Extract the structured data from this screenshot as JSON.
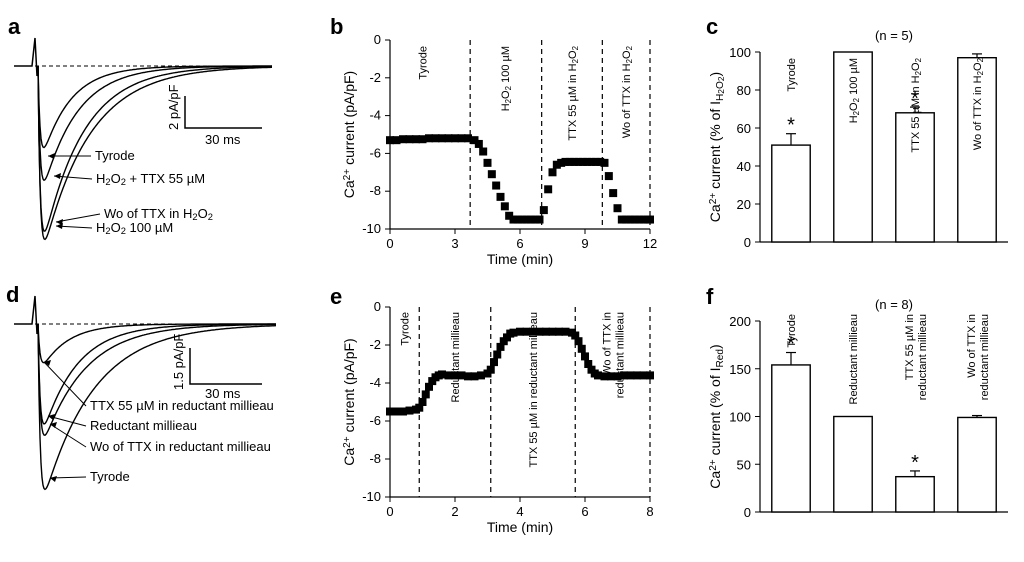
{
  "chart_data": [
    {
      "panel": "a",
      "type": "line",
      "traces": [
        {
          "name": "Tyrode",
          "peak": -1.0
        },
        {
          "name": "H2O2 + TTX 55 µM",
          "peak": -1.35
        },
        {
          "name": "Wo of TTX in H2O2",
          "peak": -1.9
        },
        {
          "name": "H2O2 100 µM",
          "peak": -1.95
        }
      ],
      "labels": [
        {
          "key": "Tyrode",
          "parts": [
            [
              "Tyrode",
              ""
            ]
          ]
        },
        {
          "key": "H2O2 + TTX 55 µM",
          "parts": [
            [
              "H",
              ""
            ],
            [
              "2",
              "sub"
            ],
            [
              "O",
              ""
            ],
            [
              "2",
              "sub"
            ],
            [
              " + TTX 55 µM",
              ""
            ]
          ]
        },
        {
          "key": "Wo of TTX in H2O2",
          "parts": [
            [
              "Wo of TTX in H",
              ""
            ],
            [
              "2",
              "sub"
            ],
            [
              "O",
              ""
            ],
            [
              "2",
              "sub"
            ]
          ]
        },
        {
          "key": "H2O2 100 µM",
          "parts": [
            [
              "H",
              ""
            ],
            [
              "2",
              "sub"
            ],
            [
              "O",
              ""
            ],
            [
              "2",
              "sub"
            ],
            [
              " 100 µM",
              ""
            ]
          ]
        }
      ],
      "scale_bar": {
        "y_label": "2 pA/pF",
        "x_label": "30 ms"
      }
    },
    {
      "panel": "b",
      "type": "scatter",
      "xlabel": "Time (min)",
      "ylabel_parts": [
        [
          "Ca",
          ""
        ],
        [
          "2+",
          "sup"
        ],
        [
          " current (pA/pF)",
          ""
        ]
      ],
      "xlim": [
        0,
        12
      ],
      "ylim": [
        -10,
        0
      ],
      "xticks": [
        "0",
        "3",
        "6",
        "9",
        "12"
      ],
      "yticks": [
        "0",
        "-2",
        "-4",
        "-6",
        "-8",
        "-10"
      ],
      "phase_boundaries": [
        3.7,
        7.0,
        9.8,
        12.0
      ],
      "phase_labels": [
        {
          "x": 1.5,
          "parts": [
            [
              "Tyrode",
              ""
            ]
          ]
        },
        {
          "x": 5.3,
          "parts": [
            [
              "H",
              ""
            ],
            [
              "2",
              "sub"
            ],
            [
              "O",
              ""
            ],
            [
              "2",
              "sub"
            ],
            [
              " 100 µM",
              ""
            ]
          ]
        },
        {
          "x": 8.4,
          "parts": [
            [
              "TTX 55 µM in H",
              ""
            ],
            [
              "2",
              "sub"
            ],
            [
              "O",
              ""
            ],
            [
              "2",
              "sub"
            ]
          ]
        },
        {
          "x": 10.9,
          "parts": [
            [
              "Wo of TTX in H",
              ""
            ],
            [
              "2",
              "sub"
            ],
            [
              "O",
              ""
            ],
            [
              "2",
              "sub"
            ]
          ]
        }
      ],
      "x": [
        0.0,
        0.3,
        0.6,
        0.9,
        1.2,
        1.5,
        1.8,
        2.1,
        2.4,
        2.7,
        3.0,
        3.3,
        3.6,
        3.9,
        4.1,
        4.3,
        4.5,
        4.7,
        4.9,
        5.1,
        5.3,
        5.5,
        5.7,
        5.9,
        6.1,
        6.3,
        6.5,
        6.7,
        6.9,
        7.1,
        7.3,
        7.5,
        7.7,
        7.9,
        8.1,
        8.3,
        8.5,
        8.7,
        8.9,
        9.1,
        9.3,
        9.5,
        9.7,
        9.9,
        10.1,
        10.3,
        10.5,
        10.7,
        10.9,
        11.1,
        11.3,
        11.5,
        11.7,
        11.9,
        12.0
      ],
      "y": [
        -5.3,
        -5.3,
        -5.25,
        -5.25,
        -5.25,
        -5.25,
        -5.2,
        -5.2,
        -5.2,
        -5.2,
        -5.2,
        -5.2,
        -5.2,
        -5.3,
        -5.5,
        -5.9,
        -6.5,
        -7.1,
        -7.7,
        -8.3,
        -8.8,
        -9.3,
        -9.5,
        -9.5,
        -9.5,
        -9.5,
        -9.5,
        -9.5,
        -9.5,
        -9.0,
        -7.9,
        -7.0,
        -6.6,
        -6.5,
        -6.45,
        -6.45,
        -6.45,
        -6.45,
        -6.45,
        -6.45,
        -6.45,
        -6.45,
        -6.45,
        -6.5,
        -7.2,
        -8.1,
        -8.9,
        -9.5,
        -9.5,
        -9.5,
        -9.5,
        -9.5,
        -9.5,
        -9.5,
        -9.5
      ]
    },
    {
      "panel": "c",
      "type": "bar",
      "title": "(n = 5)",
      "ylabel_parts": [
        [
          "Ca",
          ""
        ],
        [
          "2+",
          "sup"
        ],
        [
          " current (% of I",
          ""
        ],
        [
          "H",
          "sub"
        ],
        [
          "2",
          "subsub"
        ],
        [
          "O",
          "sub"
        ],
        [
          "2",
          "subsub"
        ],
        [
          ")",
          ""
        ]
      ],
      "ylim": [
        0,
        100
      ],
      "yticks": [
        "0",
        "20",
        "40",
        "60",
        "80",
        "100"
      ],
      "bars": [
        {
          "key": "Tyrode",
          "value": 51,
          "err": 6,
          "sig": "*",
          "label_parts": [
            [
              "Tyrode",
              ""
            ]
          ]
        },
        {
          "key": "H2O2 100 µM",
          "value": 100,
          "err": 0,
          "sig": "",
          "label_parts": [
            [
              "H",
              ""
            ],
            [
              "2",
              "sub"
            ],
            [
              "O",
              ""
            ],
            [
              "2",
              "sub"
            ],
            [
              " 100 µM",
              ""
            ]
          ]
        },
        {
          "key": "TTX 55 µM in H2O2",
          "value": 68,
          "err": 3,
          "sig": "*",
          "label_parts": [
            [
              "TTX 55 µM in H",
              ""
            ],
            [
              "2",
              "sub"
            ],
            [
              "O",
              ""
            ],
            [
              "2",
              "sub"
            ]
          ]
        },
        {
          "key": "Wo of TTX in H2O2",
          "value": 97,
          "err": 2,
          "sig": "",
          "label_parts": [
            [
              "Wo of TTX in H",
              ""
            ],
            [
              "2",
              "sub"
            ],
            [
              "O",
              ""
            ],
            [
              "2",
              "sub"
            ]
          ]
        }
      ]
    },
    {
      "panel": "d",
      "type": "line",
      "traces": [
        {
          "name": "TTX 55 µM in reductant millieau",
          "peak": -0.55
        },
        {
          "name": "Reductant millieau",
          "peak": -1.35
        },
        {
          "name": "Wo of TTX in reductant millieau",
          "peak": -1.45
        },
        {
          "name": "Tyrode",
          "peak": -2.1
        }
      ],
      "labels": [
        {
          "key": "TTX 55 µM in reductant millieau",
          "parts": [
            [
              "TTX 55 µM in reductant millieau",
              ""
            ]
          ]
        },
        {
          "key": "Reductant millieau",
          "parts": [
            [
              "Reductant millieau",
              ""
            ]
          ]
        },
        {
          "key": "Wo of TTX in reductant millieau",
          "parts": [
            [
              "Wo of TTX in reductant millieau",
              ""
            ]
          ]
        },
        {
          "key": "Tyrode",
          "parts": [
            [
              "Tyrode",
              ""
            ]
          ]
        }
      ],
      "scale_bar": {
        "y_label": "1.5 pA/pF",
        "x_label": "30 ms"
      }
    },
    {
      "panel": "e",
      "type": "scatter",
      "xlabel": "Time (min)",
      "ylabel_parts": [
        [
          "Ca",
          ""
        ],
        [
          "2+",
          "sup"
        ],
        [
          " current (pA/pF)",
          ""
        ]
      ],
      "xlim": [
        0,
        8
      ],
      "ylim": [
        -10,
        0
      ],
      "xticks": [
        "0",
        "2",
        "4",
        "6",
        "8"
      ],
      "yticks": [
        "0",
        "-2",
        "-4",
        "-6",
        "-8",
        "-10"
      ],
      "phase_boundaries": [
        0.9,
        3.1,
        5.7,
        8.0
      ],
      "phase_labels": [
        {
          "x": 0.45,
          "parts": [
            [
              "Tyrode",
              ""
            ]
          ]
        },
        {
          "x": 2.0,
          "parts": [
            [
              "Reductant millieau",
              ""
            ]
          ]
        },
        {
          "x": 4.4,
          "parts": [
            [
              "TTX 55 µM in reductant millieau",
              ""
            ]
          ]
        },
        {
          "x": 6.85,
          "parts": [
            [
              "Wo of TTX in",
              ""
            ]
          ],
          "parts2": [
            [
              "reductant millieau",
              ""
            ]
          ]
        }
      ],
      "x": [
        0.0,
        0.2,
        0.4,
        0.6,
        0.8,
        0.9,
        1.0,
        1.1,
        1.2,
        1.3,
        1.4,
        1.5,
        1.6,
        1.8,
        2.0,
        2.2,
        2.4,
        2.6,
        2.8,
        3.0,
        3.1,
        3.2,
        3.3,
        3.4,
        3.5,
        3.6,
        3.7,
        3.8,
        4.0,
        4.2,
        4.4,
        4.6,
        4.8,
        5.0,
        5.2,
        5.4,
        5.6,
        5.7,
        5.8,
        5.9,
        6.0,
        6.1,
        6.2,
        6.3,
        6.4,
        6.6,
        6.8,
        7.0,
        7.2,
        7.4,
        7.6,
        7.8,
        8.0
      ],
      "y": [
        -5.5,
        -5.5,
        -5.5,
        -5.45,
        -5.4,
        -5.3,
        -5.0,
        -4.6,
        -4.2,
        -3.9,
        -3.7,
        -3.6,
        -3.55,
        -3.6,
        -3.6,
        -3.6,
        -3.65,
        -3.65,
        -3.6,
        -3.5,
        -3.3,
        -2.9,
        -2.5,
        -2.1,
        -1.8,
        -1.6,
        -1.4,
        -1.35,
        -1.3,
        -1.3,
        -1.3,
        -1.3,
        -1.3,
        -1.3,
        -1.3,
        -1.3,
        -1.35,
        -1.5,
        -1.8,
        -2.2,
        -2.6,
        -3.0,
        -3.3,
        -3.5,
        -3.6,
        -3.65,
        -3.65,
        -3.65,
        -3.6,
        -3.6,
        -3.6,
        -3.6,
        -3.6
      ]
    },
    {
      "panel": "f",
      "type": "bar",
      "title": "(n = 8)",
      "ylabel_parts": [
        [
          "Ca",
          ""
        ],
        [
          "2+",
          "sup"
        ],
        [
          " current (% of I",
          ""
        ],
        [
          "Red",
          "sub"
        ],
        [
          ")",
          ""
        ]
      ],
      "ylim": [
        0,
        200
      ],
      "yticks": [
        "0",
        "50",
        "100",
        "150",
        "200"
      ],
      "bars": [
        {
          "key": "Tyrode",
          "value": 154,
          "err": 13,
          "sig": "*",
          "label_parts": [
            [
              "Tyrode",
              ""
            ]
          ]
        },
        {
          "key": "Reductant millieau",
          "value": 100,
          "err": 0,
          "sig": "",
          "label_parts": [
            [
              "Reductant millieau",
              ""
            ]
          ]
        },
        {
          "key": "TTX 55 µM in reductant millieau",
          "value": 37,
          "err": 6,
          "sig": "*",
          "label_parts": [
            [
              "TTX 55 µM in",
              ""
            ]
          ],
          "label_parts2": [
            [
              "reductant millieau",
              ""
            ]
          ]
        },
        {
          "key": "Wo of TTX in reductant millieau",
          "value": 99,
          "err": 2,
          "sig": "",
          "label_parts": [
            [
              "Wo of TTX in",
              ""
            ]
          ],
          "label_parts2": [
            [
              "reductant millieau",
              ""
            ]
          ]
        }
      ]
    }
  ]
}
